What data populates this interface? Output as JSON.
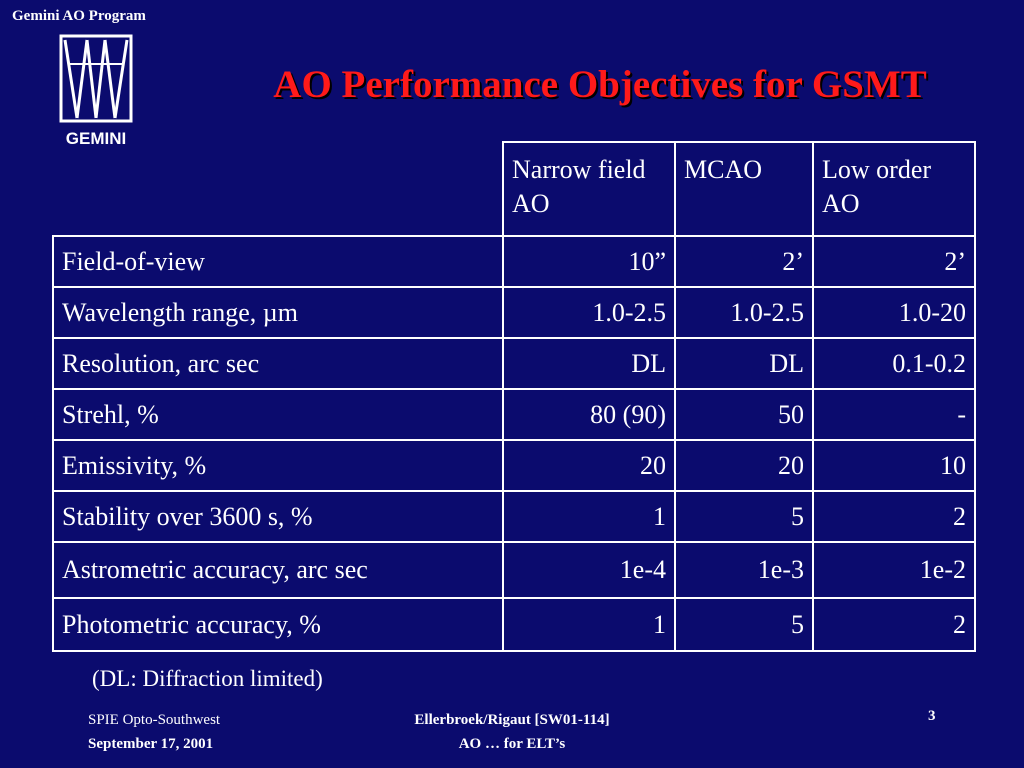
{
  "header": {
    "program": "Gemini AO Program",
    "logo_text": "GEMINI",
    "title": "AO Performance Objectives for GSMT"
  },
  "table": {
    "columns": [
      "Narrow field AO",
      "MCAO",
      "Low order AO"
    ],
    "rows": [
      {
        "label": "Field-of-view",
        "values": [
          "10”",
          "2’",
          "2’"
        ]
      },
      {
        "label": "Wavelength range, µm",
        "values": [
          "1.0-2.5",
          "1.0-2.5",
          "1.0-20"
        ]
      },
      {
        "label": "Resolution, arc sec",
        "values": [
          "DL",
          "DL",
          "0.1-0.2"
        ]
      },
      {
        "label": "Strehl, %",
        "values": [
          "80 (90)",
          "50",
          "-"
        ]
      },
      {
        "label": "Emissivity, %",
        "values": [
          "20",
          "20",
          "10"
        ]
      },
      {
        "label": "Stability over 3600 s, %",
        "values": [
          "1",
          "5",
          "2"
        ]
      },
      {
        "label": "Astrometric accuracy, arc sec",
        "values": [
          "1e-4",
          "1e-3",
          "1e-2"
        ]
      },
      {
        "label": "Photometric accuracy, %",
        "values": [
          "1",
          "5",
          "2"
        ]
      }
    ]
  },
  "note": "(DL:  Diffraction limited)",
  "footer": {
    "left_line1": "SPIE Opto-Southwest",
    "left_line2": "September 17, 2001",
    "center_line1": "Ellerbroek/Rigaut [SW01-114]",
    "center_line2": "AO … for ELT’s",
    "page": "3"
  }
}
